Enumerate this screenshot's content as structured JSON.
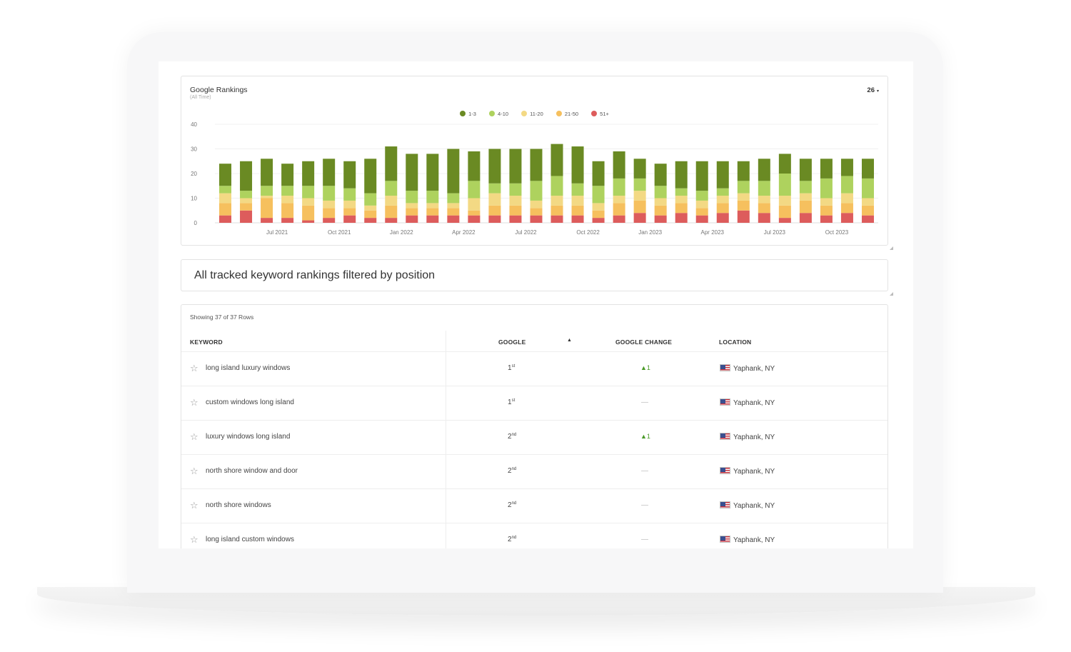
{
  "chart": {
    "title": "Google Rankings",
    "subtitle": "(All Time)",
    "count_value": "26",
    "count_caret": "▾",
    "colors": {
      "r1_3": "#6a8a23",
      "r4_10": "#aed25e",
      "r11_20": "#f3d984",
      "r21_50": "#f6c05e",
      "r51": "#dd5c5c"
    },
    "legend": [
      {
        "label": "1-3",
        "color": "#6a8a23"
      },
      {
        "label": "4-10",
        "color": "#aed25e"
      },
      {
        "label": "11-20",
        "color": "#f3d984"
      },
      {
        "label": "21-50",
        "color": "#f6c05e"
      },
      {
        "label": "51+",
        "color": "#dd5c5c"
      }
    ]
  },
  "chart_data": {
    "type": "bar",
    "stacked": true,
    "title": "Google Rankings",
    "subtitle": "(All Time)",
    "ylim": [
      0,
      40
    ],
    "yticks": [
      0,
      10,
      20,
      30,
      40
    ],
    "xticks": [
      {
        "index": 2,
        "label": "Jul 2021"
      },
      {
        "index": 5,
        "label": "Oct 2021"
      },
      {
        "index": 8,
        "label": "Jan 2022"
      },
      {
        "index": 11,
        "label": "Apr 2022"
      },
      {
        "index": 14,
        "label": "Jul 2022"
      },
      {
        "index": 17,
        "label": "Oct 2022"
      },
      {
        "index": 20,
        "label": "Jan 2023"
      },
      {
        "index": 23,
        "label": "Apr 2023"
      },
      {
        "index": 26,
        "label": "Jul 2023"
      },
      {
        "index": 29,
        "label": "Oct 2023"
      }
    ],
    "series": [
      {
        "name": "51+",
        "color": "#dd5c5c",
        "values": [
          3,
          5,
          2,
          2,
          1,
          2,
          3,
          2,
          2,
          3,
          3,
          3,
          3,
          3,
          3,
          3,
          3,
          3,
          2,
          3,
          4,
          3,
          4,
          3,
          4,
          5,
          4,
          2,
          4,
          3,
          4,
          3
        ]
      },
      {
        "name": "21-50",
        "color": "#f6c05e",
        "values": [
          5,
          3,
          8,
          6,
          6,
          4,
          3,
          3,
          5,
          3,
          3,
          3,
          2,
          4,
          4,
          3,
          4,
          4,
          3,
          5,
          5,
          4,
          4,
          3,
          4,
          4,
          4,
          5,
          5,
          4,
          4,
          4
        ]
      },
      {
        "name": "11-20",
        "color": "#f3d984",
        "values": [
          4,
          2,
          1,
          3,
          3,
          3,
          3,
          2,
          4,
          2,
          2,
          2,
          5,
          5,
          4,
          3,
          4,
          4,
          3,
          3,
          4,
          3,
          3,
          3,
          3,
          3,
          3,
          4,
          3,
          3,
          4,
          3
        ]
      },
      {
        "name": "4-10",
        "color": "#aed25e",
        "values": [
          3,
          3,
          4,
          4,
          5,
          6,
          5,
          5,
          6,
          5,
          5,
          4,
          7,
          4,
          5,
          8,
          8,
          5,
          7,
          7,
          5,
          5,
          3,
          4,
          3,
          5,
          6,
          9,
          5,
          8,
          7,
          8
        ]
      },
      {
        "name": "1-3",
        "color": "#6a8a23",
        "values": [
          9,
          12,
          11,
          9,
          10,
          11,
          11,
          14,
          14,
          15,
          15,
          18,
          12,
          14,
          14,
          13,
          13,
          15,
          10,
          11,
          8,
          9,
          11,
          12,
          11,
          8,
          9,
          8,
          9,
          8,
          7,
          8
        ]
      }
    ]
  },
  "filter": {
    "label": "All tracked keyword rankings filtered by position"
  },
  "table": {
    "rows_count": "Showing 37 of 37 Rows",
    "headers": {
      "keyword": "KEYWORD",
      "google": "GOOGLE",
      "sort_indicator": "▲",
      "change": "GOOGLE CHANGE",
      "location": "LOCATION"
    },
    "rows": [
      {
        "keyword": "long island luxury windows",
        "rank": "1",
        "rank_suffix": "st",
        "change": "▲1",
        "change_dir": "up",
        "location": "Yaphank, NY"
      },
      {
        "keyword": "custom windows long island",
        "rank": "1",
        "rank_suffix": "st",
        "change": "—",
        "change_dir": "none",
        "location": "Yaphank, NY"
      },
      {
        "keyword": "luxury windows long island",
        "rank": "2",
        "rank_suffix": "nd",
        "change": "▲1",
        "change_dir": "up",
        "location": "Yaphank, NY"
      },
      {
        "keyword": "north shore window and door",
        "rank": "2",
        "rank_suffix": "nd",
        "change": "—",
        "change_dir": "none",
        "location": "Yaphank, NY"
      },
      {
        "keyword": "north shore windows",
        "rank": "2",
        "rank_suffix": "nd",
        "change": "—",
        "change_dir": "none",
        "location": "Yaphank, NY"
      },
      {
        "keyword": "long island custom windows",
        "rank": "2",
        "rank_suffix": "nd",
        "change": "—",
        "change_dir": "none",
        "location": "Yaphank, NY"
      }
    ],
    "star_icon": "☆"
  }
}
